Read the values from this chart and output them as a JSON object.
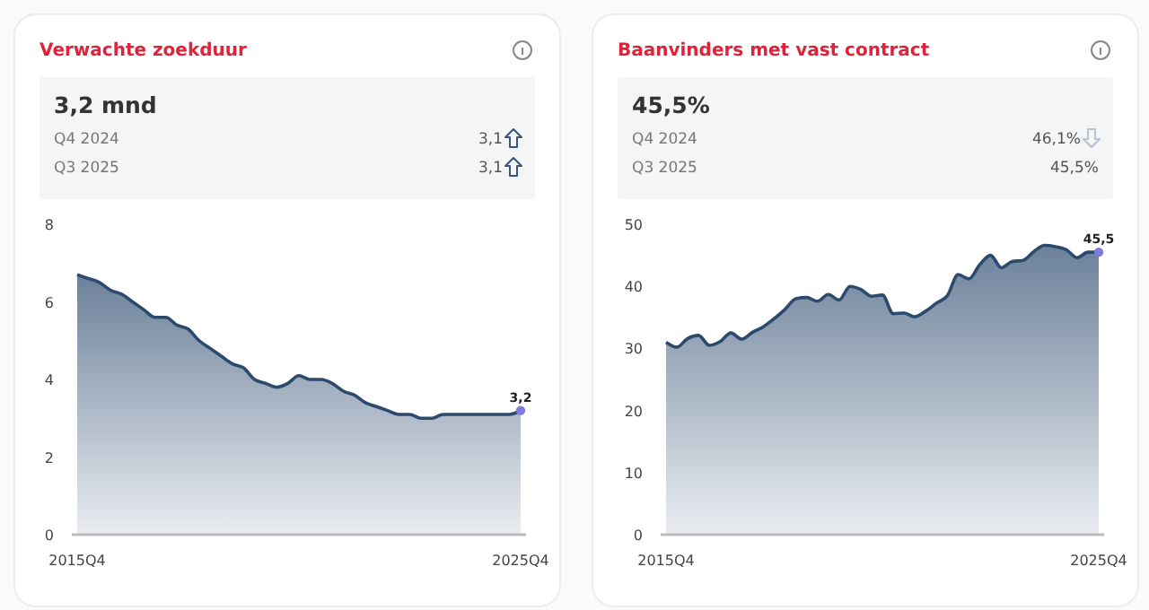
{
  "chart_data": [
    {
      "type": "area",
      "title": "Verwachte zoekduur",
      "annotations": [
        "3,2 mnd",
        "Q4 2024",
        "3,1",
        "Q3 2025",
        "3,1"
      ],
      "categories": [
        "2015Q4",
        null,
        null,
        null,
        null,
        null,
        null,
        null,
        null,
        null,
        null,
        null,
        null,
        null,
        null,
        null,
        null,
        null,
        null,
        null,
        null,
        null,
        null,
        null,
        null,
        null,
        null,
        null,
        null,
        null,
        null,
        null,
        null,
        null,
        null,
        null,
        null,
        null,
        null,
        null,
        "2025Q4"
      ],
      "series": [
        {
          "color": "#2c4a6e",
          "values": [
            6.7,
            6.6,
            6.5,
            6.3,
            6.2,
            6.0,
            5.8,
            5.6,
            5.6,
            5.4,
            5.3,
            5.0,
            4.8,
            4.6,
            4.4,
            4.3,
            4.0,
            3.9,
            3.8,
            3.9,
            4.1,
            4.0,
            4.0,
            3.9,
            3.7,
            3.6,
            3.4,
            3.3,
            3.2,
            3.1,
            3.1,
            3.0,
            3.0,
            3.1,
            3.1,
            3.1,
            3.1,
            3.1,
            3.1,
            3.1,
            3.2
          ],
          "value_labels": [
            null,
            null,
            null,
            null,
            null,
            null,
            null,
            null,
            null,
            null,
            null,
            null,
            null,
            null,
            null,
            null,
            null,
            null,
            null,
            null,
            null,
            null,
            null,
            null,
            null,
            null,
            null,
            null,
            null,
            null,
            null,
            null,
            null,
            null,
            null,
            null,
            null,
            null,
            null,
            null,
            "3,2"
          ]
        }
      ],
      "ylim": [
        0,
        8
      ],
      "yticks": [
        0,
        2,
        4,
        6,
        8
      ],
      "grid": false
    },
    {
      "type": "area",
      "title": "Baanvinders met vast contract",
      "annotations": [
        "45,5%",
        "Q4 2024",
        "46,1%",
        "Q3 2025",
        "45,5%"
      ],
      "categories": [
        "2015Q4",
        null,
        null,
        null,
        null,
        null,
        null,
        null,
        null,
        null,
        null,
        null,
        null,
        null,
        null,
        null,
        null,
        null,
        null,
        null,
        null,
        null,
        null,
        null,
        null,
        null,
        null,
        null,
        null,
        null,
        null,
        null,
        null,
        null,
        null,
        null,
        null,
        null,
        null,
        null,
        "2025Q4"
      ],
      "series": [
        {
          "color": "#2c4a6e",
          "values": [
            31.0,
            30.2,
            31.6,
            32.1,
            30.5,
            31.1,
            32.5,
            31.5,
            32.6,
            33.5,
            34.8,
            36.3,
            38.0,
            38.2,
            37.6,
            38.7,
            37.8,
            40.0,
            39.5,
            38.4,
            38.6,
            35.6,
            35.7,
            35.1,
            36.0,
            37.3,
            38.5,
            41.9,
            41.2,
            43.5,
            45.0,
            43.0,
            44.0,
            44.2,
            45.6,
            46.6,
            46.4,
            45.9,
            44.6,
            45.5,
            45.5
          ],
          "value_labels": [
            null,
            null,
            null,
            null,
            null,
            null,
            null,
            null,
            null,
            null,
            null,
            null,
            null,
            null,
            null,
            null,
            null,
            null,
            null,
            null,
            null,
            null,
            null,
            null,
            null,
            null,
            null,
            null,
            null,
            null,
            null,
            null,
            null,
            null,
            null,
            null,
            null,
            null,
            null,
            null,
            "45,5"
          ]
        }
      ],
      "ylim": [
        0,
        50
      ],
      "yticks": [
        0,
        10,
        20,
        30,
        40,
        50
      ],
      "grid": false
    }
  ]
}
